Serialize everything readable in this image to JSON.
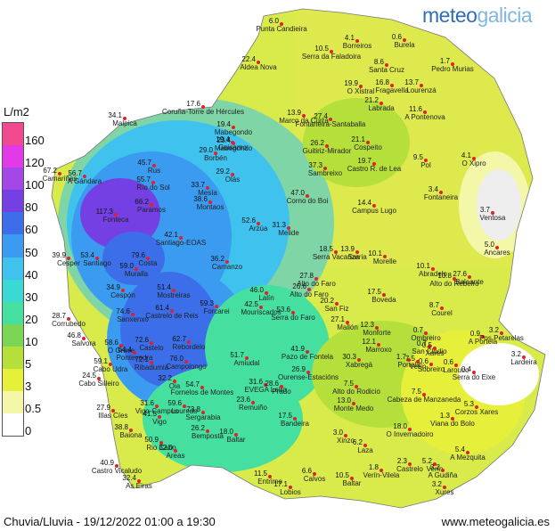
{
  "brand": {
    "part1": "meteo",
    "part2": "galicia"
  },
  "legend": {
    "unit": "L/m2",
    "ticks": [
      "160",
      "120",
      "100",
      "80",
      "60",
      "50",
      "40",
      "30",
      "20",
      "10",
      "5",
      "3",
      "0.5",
      "0"
    ],
    "colors": [
      "#f24a8e",
      "#e23ae6",
      "#a347e6",
      "#7440e3",
      "#3b6ee8",
      "#3a9bf0",
      "#3fc2ee",
      "#3ad9d3",
      "#45e0a0",
      "#7bd655",
      "#b5df3a",
      "#e6ef3a",
      "#f4f7a8",
      "#ffffff"
    ]
  },
  "caption": "Chuvia/Lluvia - 19/12/2022 01:00 a 19:30",
  "website": "www.meteogalicia.es",
  "stations": [
    {
      "name": "Punta Candieira",
      "value": "6.0"
    },
    {
      "name": "Aldea Nova",
      "value": "22.4"
    },
    {
      "name": "Serra da Faladoira",
      "value": "10.5"
    },
    {
      "name": "Borreiros",
      "value": "4.1"
    },
    {
      "name": "Burela",
      "value": "0.6"
    },
    {
      "name": "Santa Cruz",
      "value": "8.6"
    },
    {
      "name": "Pedro Murias",
      "value": "1.7"
    },
    {
      "name": "O Xistral",
      "value": "19.9"
    },
    {
      "name": "Fragavella",
      "value": "16.8"
    },
    {
      "name": "Lourenzá",
      "value": "13.7"
    },
    {
      "name": "Labrada",
      "value": "21.2"
    },
    {
      "name": "A Pontenova",
      "value": "11.6"
    },
    {
      "name": "Coruña-Torre de Hércules",
      "value": "17.6"
    },
    {
      "name": "Mabegondo",
      "value": "19.4"
    },
    {
      "name": "Marco da Curra",
      "value": "13.9"
    },
    {
      "name": "Fontaneira-Santaballa",
      "value": "27.4"
    },
    {
      "name": "Malpica",
      "value": "34.1"
    },
    {
      "name": "Guisamo",
      "value": "19.4"
    },
    {
      "name": "Mabegondo",
      "value": "23.4"
    },
    {
      "name": "Borbén",
      "value": "29.0"
    },
    {
      "name": "Guitiriz-Mirador",
      "value": "26.2"
    },
    {
      "name": "Cospeito",
      "value": "21.1"
    },
    {
      "name": "Pol",
      "value": "9.5"
    },
    {
      "name": "O Xipro",
      "value": "4.1"
    },
    {
      "name": "Camariñas",
      "value": "67.2"
    },
    {
      "name": "A Gándara",
      "value": "56.7"
    },
    {
      "name": "Rus",
      "value": "45.7"
    },
    {
      "name": "Río do Sol",
      "value": "55.7"
    },
    {
      "name": "Olás",
      "value": "29.2"
    },
    {
      "name": "Sambreixo",
      "value": "37.3"
    },
    {
      "name": "Castro R. de Lea",
      "value": "19.7"
    },
    {
      "name": "Fontaneira",
      "value": "3.4"
    },
    {
      "name": "Mesía",
      "value": "33.7"
    },
    {
      "name": "Montaos",
      "value": "38.6"
    },
    {
      "name": "Corno do Boi",
      "value": "47.0"
    },
    {
      "name": "Campus Lugo",
      "value": "14.4"
    },
    {
      "name": "Ventosa",
      "value": "3.7"
    },
    {
      "name": "Fonteca",
      "value": "117.3"
    },
    {
      "name": "Paramos",
      "value": "66.2"
    },
    {
      "name": "Arzúa",
      "value": "52.6"
    },
    {
      "name": "Melide",
      "value": "31.3"
    },
    {
      "name": "Santiago-EOAS",
      "value": "42.1"
    },
    {
      "name": "Ancares",
      "value": "5.0"
    },
    {
      "name": "Cesper",
      "value": "39.9"
    },
    {
      "name": "Santiago",
      "value": "53.4"
    },
    {
      "name": "Costa",
      "value": "79.6"
    },
    {
      "name": "Muralla",
      "value": "59.0"
    },
    {
      "name": "Camanzo",
      "value": "36.2"
    },
    {
      "name": "Serra Vacariza",
      "value": "18.5"
    },
    {
      "name": "Sarria",
      "value": "13.9"
    },
    {
      "name": "Morelle",
      "value": "10.1"
    },
    {
      "name": "Abradelo",
      "value": "10.1"
    },
    {
      "name": "Alto do Faro",
      "value": "27.8"
    },
    {
      "name": "Alto do Rebeiro",
      "value": "10.8"
    },
    {
      "name": "Baleante",
      "value": "27.6"
    },
    {
      "name": "Cespón",
      "value": "34.9"
    },
    {
      "name": "Mostreiras",
      "value": "51.4"
    },
    {
      "name": "Lalín",
      "value": "46.0"
    },
    {
      "name": "Alto do Faro",
      "value": "26.6"
    },
    {
      "name": "Sanxenxo",
      "value": "74.6"
    },
    {
      "name": "Corrubedo",
      "value": "28.7"
    },
    {
      "name": "Castrelo de Reis",
      "value": "61.4"
    },
    {
      "name": "Forcarei",
      "value": "59.3"
    },
    {
      "name": "Mouriscados",
      "value": "42.5"
    },
    {
      "name": "Serra do Faro",
      "value": "53.6"
    },
    {
      "name": "San Fiz",
      "value": "20.2"
    },
    {
      "name": "Boveda",
      "value": "17.5"
    },
    {
      "name": "Courel",
      "value": "8.7"
    },
    {
      "name": "Mallón",
      "value": "27.1"
    },
    {
      "name": "Monforte",
      "value": "12.3"
    },
    {
      "name": "Ombreiro",
      "value": "0.7"
    },
    {
      "name": "San Clodio",
      "value": "0.7"
    },
    {
      "name": "Salvora",
      "value": "46.8"
    },
    {
      "name": "O Grove",
      "value": "58.6"
    },
    {
      "name": "Castelo",
      "value": "72.6"
    },
    {
      "name": "Ribadumia",
      "value": "72.1"
    },
    {
      "name": "Campolongo",
      "value": "76.0"
    },
    {
      "name": "Rebordelo",
      "value": "62.7"
    },
    {
      "name": "Pazo de Fontela",
      "value": "41.9"
    },
    {
      "name": "Marroxo",
      "value": "12.1"
    },
    {
      "name": "Xares",
      "value": "0.5"
    },
    {
      "name": "A Portela",
      "value": "0.9"
    },
    {
      "name": "Pos Petarelas",
      "value": "3.2"
    },
    {
      "name": "Lardeira",
      "value": "3.2"
    },
    {
      "name": "Cabo Udra",
      "value": "59.1"
    },
    {
      "name": "Pontevedra",
      "value": "64.4"
    },
    {
      "name": "Amiudal",
      "value": "51.7"
    },
    {
      "name": "Xabregá",
      "value": "30.3"
    },
    {
      "name": "Portela",
      "value": "1.7"
    },
    {
      "name": "Sobreiro",
      "value": "0.6"
    },
    {
      "name": "Larouco",
      "value": "0.6"
    },
    {
      "name": "Serra do Eixe",
      "value": "0.4"
    },
    {
      "name": "Cabo Silleiro",
      "value": "24.5"
    },
    {
      "name": "Oia",
      "value": "32.2"
    },
    {
      "name": "Fornelos de Montes",
      "value": "54.7"
    },
    {
      "name": "EVEGA Leiro",
      "value": "31.6"
    },
    {
      "name": "Ourense-Estacións",
      "value": "26.9"
    },
    {
      "name": "Alto do Rodicio",
      "value": "7.5"
    },
    {
      "name": "Prado",
      "value": "28.6"
    },
    {
      "name": "Verín",
      "value": "7.5"
    },
    {
      "name": "Cabeza de Manzaneda",
      "value": "7.5"
    },
    {
      "name": "Illas Cíes",
      "value": "27.9"
    },
    {
      "name": "Vigo-Campus",
      "value": "31.6"
    },
    {
      "name": "Vigo",
      "value": "41.5"
    },
    {
      "name": "Louredo",
      "value": "59.6"
    },
    {
      "name": "Sergarabia",
      "value": "73.8"
    },
    {
      "name": "Remuiño",
      "value": "23.6"
    },
    {
      "name": "Monte Medo",
      "value": "13.0"
    },
    {
      "name": "Viana do Bolo",
      "value": "1.3"
    },
    {
      "name": "Corzos Xares",
      "value": "5.3"
    },
    {
      "name": "Bandeira",
      "value": "17.5"
    },
    {
      "name": "Baiona",
      "value": "38.8"
    },
    {
      "name": "Rio Cabo",
      "value": "50.9"
    },
    {
      "name": "Areas",
      "value": "32.0"
    },
    {
      "name": "Bemposta",
      "value": "26.2"
    },
    {
      "name": "Baltar",
      "value": "18.0"
    },
    {
      "name": "Xinzo",
      "value": "3.0"
    },
    {
      "name": "O Invernadoiro",
      "value": "18.0"
    },
    {
      "name": "Laza",
      "value": "6.2"
    },
    {
      "name": "Castro Vicaludo",
      "value": "40.9"
    },
    {
      "name": "As Eiras",
      "value": "32.4"
    },
    {
      "name": "Entrimo",
      "value": "11.5"
    },
    {
      "name": "Calvos",
      "value": "6.6"
    },
    {
      "name": "Baltar",
      "value": "10.5"
    },
    {
      "name": "Verín-Vilela",
      "value": "1.8"
    },
    {
      "name": "Lobios",
      "value": "17.1"
    },
    {
      "name": "A Mezquita",
      "value": "5.4"
    },
    {
      "name": "Xures",
      "value": "3.2"
    },
    {
      "name": "Castrelo",
      "value": "2.3"
    },
    {
      "name": "Verín",
      "value": "5.2"
    },
    {
      "name": "A Gudiña",
      "value": "3.2"
    }
  ]
}
